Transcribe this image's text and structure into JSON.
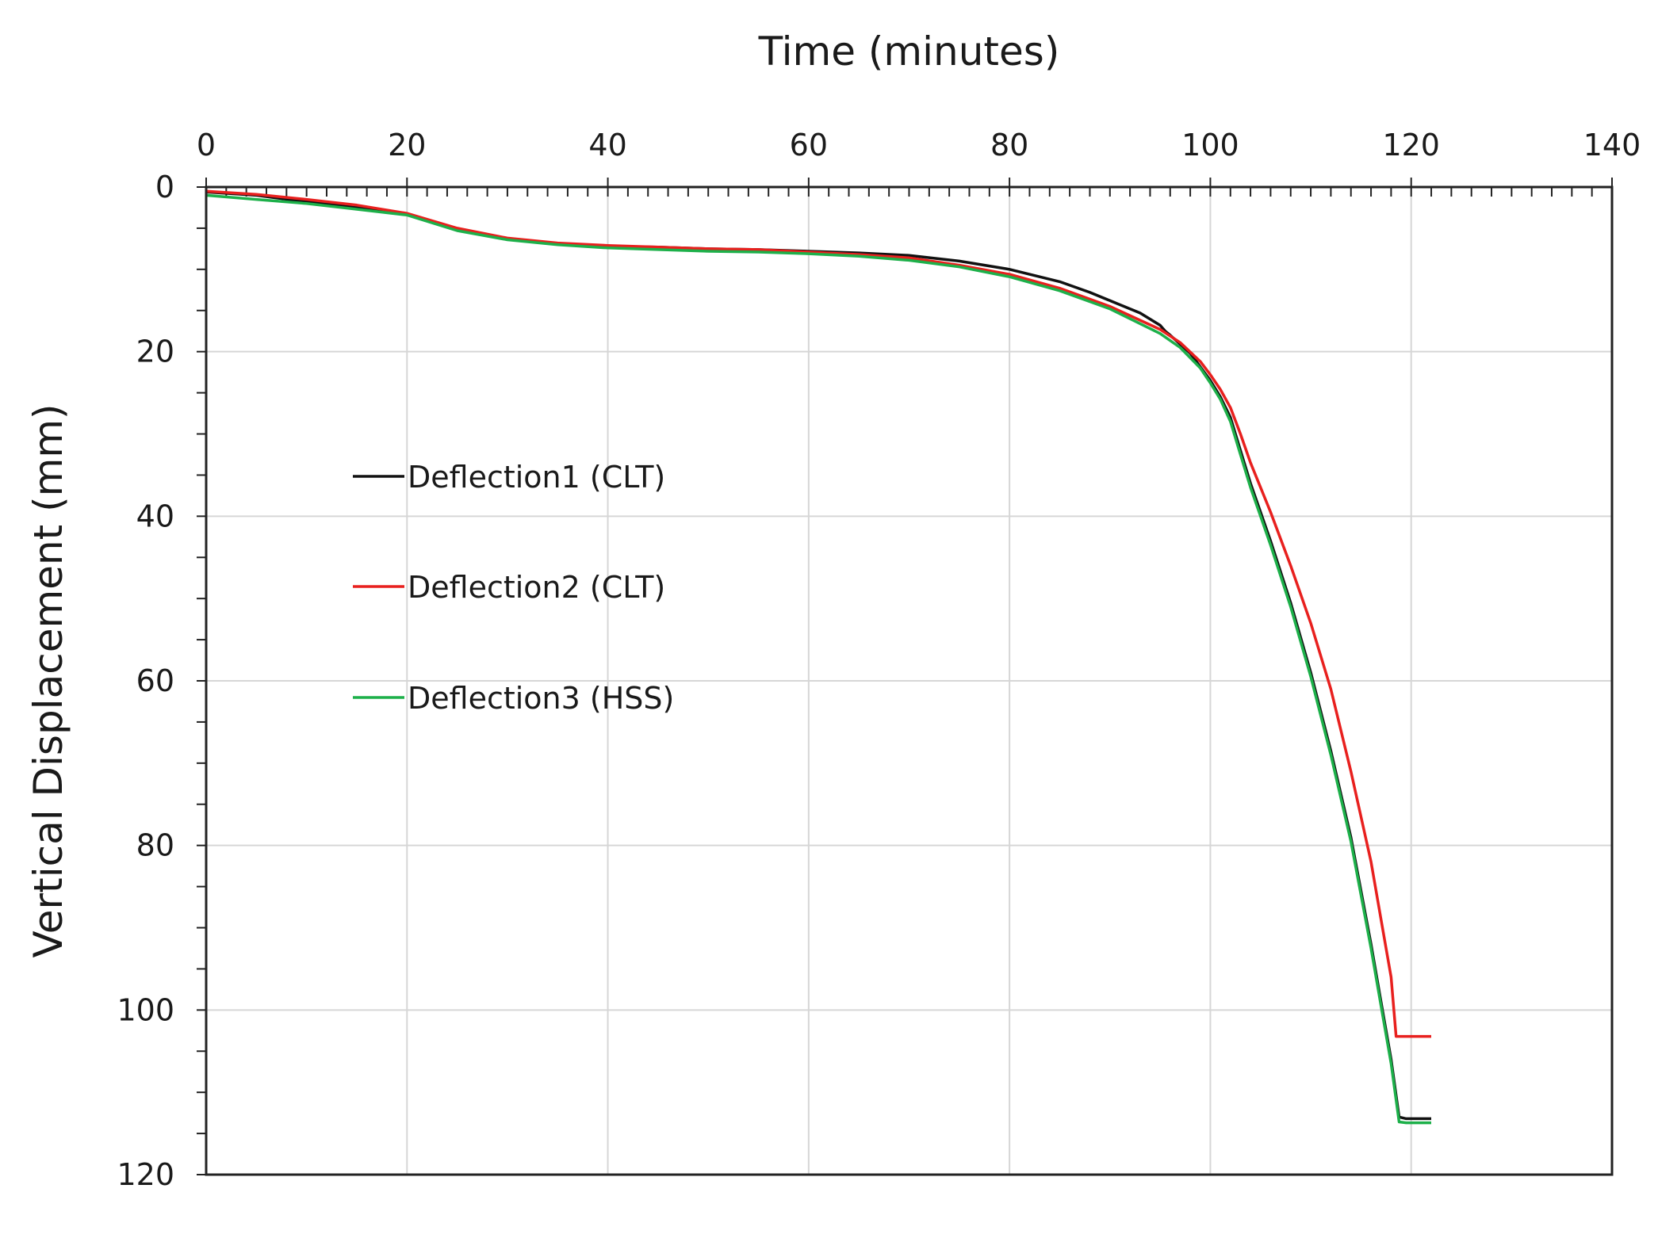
{
  "chart_data": {
    "type": "line",
    "title": "",
    "xlabel": "Time (minutes)",
    "ylabel": "Vertical Displacement (mm)",
    "x_axis_position": "top",
    "y_axis_inverted": true,
    "xlim": [
      0,
      140
    ],
    "ylim": [
      0,
      120
    ],
    "x_ticks": [
      0,
      20,
      40,
      60,
      80,
      100,
      120,
      140
    ],
    "y_ticks": [
      0,
      20,
      40,
      60,
      80,
      100,
      120
    ],
    "x_tick_labels": [
      "0",
      "20",
      "40",
      "60",
      "80",
      "100",
      "120",
      "140"
    ],
    "y_tick_labels": [
      "0",
      "20",
      "40",
      "60",
      "80",
      "100",
      "120"
    ],
    "grid": true,
    "legend_position": "left, inside plot",
    "series": [
      {
        "name": "Deflection1 (CLT)",
        "color": "#111111",
        "x": [
          0,
          5,
          10,
          15,
          20,
          25,
          30,
          35,
          40,
          45,
          50,
          55,
          60,
          65,
          70,
          75,
          80,
          85,
          88,
          90,
          93,
          95,
          95.5,
          96,
          98,
          100,
          101,
          102,
          103,
          104,
          106,
          108,
          110,
          112,
          114,
          116,
          117,
          118,
          118.8,
          119.5,
          122
        ],
        "y": [
          0.6,
          1.0,
          1.8,
          2.5,
          3.3,
          5.2,
          6.3,
          6.9,
          7.2,
          7.3,
          7.5,
          7.6,
          7.8,
          8.0,
          8.3,
          9.0,
          10.0,
          11.5,
          12.8,
          13.8,
          15.3,
          16.8,
          17.5,
          18.0,
          20.2,
          23.5,
          25.5,
          28.0,
          32.0,
          36.0,
          43.0,
          50.5,
          59.0,
          68.5,
          79.0,
          92.0,
          99.0,
          106.0,
          113.0,
          113.2,
          113.2
        ]
      },
      {
        "name": "Deflection2 (CLT)",
        "color": "#e8201e",
        "x": [
          0,
          5,
          10,
          15,
          20,
          25,
          30,
          35,
          40,
          45,
          50,
          55,
          60,
          65,
          70,
          75,
          80,
          85,
          90,
          95,
          97,
          99,
          100,
          101,
          102,
          103,
          104,
          106,
          108,
          110,
          112,
          114,
          116,
          117,
          118,
          118.5,
          122
        ],
        "y": [
          0.5,
          0.9,
          1.5,
          2.2,
          3.2,
          5.0,
          6.2,
          6.8,
          7.1,
          7.3,
          7.5,
          7.6,
          7.9,
          8.2,
          8.6,
          9.5,
          10.6,
          12.3,
          14.5,
          17.3,
          18.9,
          21.2,
          22.8,
          24.6,
          26.8,
          30.0,
          33.5,
          39.5,
          46.0,
          53.0,
          61.0,
          71.0,
          82.0,
          89.0,
          96.0,
          103.2,
          103.2
        ]
      },
      {
        "name": "Deflection3 (HSS)",
        "color": "#1db04a",
        "x": [
          0,
          5,
          10,
          15,
          20,
          25,
          30,
          35,
          40,
          45,
          50,
          55,
          60,
          65,
          70,
          75,
          80,
          85,
          90,
          95,
          97,
          99,
          100,
          101,
          102,
          103,
          104,
          106,
          108,
          110,
          112,
          114,
          116,
          117,
          118,
          118.8,
          119.5,
          122
        ],
        "y": [
          1.0,
          1.5,
          2.0,
          2.7,
          3.4,
          5.3,
          6.4,
          7.0,
          7.4,
          7.6,
          7.8,
          7.9,
          8.1,
          8.4,
          8.9,
          9.7,
          10.9,
          12.6,
          14.8,
          17.8,
          19.5,
          22.0,
          23.8,
          25.8,
          28.5,
          32.5,
          36.5,
          43.5,
          51.0,
          59.5,
          69.0,
          79.5,
          92.5,
          99.5,
          106.5,
          113.6,
          113.7,
          113.7
        ]
      }
    ]
  }
}
